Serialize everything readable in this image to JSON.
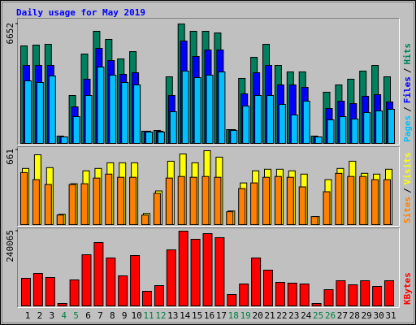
{
  "chart_data": {
    "type": "bar",
    "title": "Daily usage for May 2019",
    "legend_separator": "/",
    "categories": [
      "1",
      "2",
      "3",
      "4",
      "5",
      "6",
      "7",
      "8",
      "9",
      "10",
      "11",
      "12",
      "13",
      "14",
      "15",
      "16",
      "17",
      "18",
      "19",
      "20",
      "21",
      "22",
      "23",
      "24",
      "25",
      "26",
      "27",
      "28",
      "29",
      "30",
      "31"
    ],
    "category_colors": [
      "#000000",
      "#000000",
      "#000000",
      "#008040",
      "#008040",
      "#000000",
      "#000000",
      "#000000",
      "#000000",
      "#000000",
      "#008040",
      "#008040",
      "#000000",
      "#000000",
      "#000000",
      "#000000",
      "#000000",
      "#008040",
      "#008040",
      "#000000",
      "#000000",
      "#000000",
      "#000000",
      "#000000",
      "#008040",
      "#008040",
      "#000000",
      "#000000",
      "#000000",
      "#000000",
      "#000000"
    ],
    "panels": [
      {
        "ylim": [
          0,
          6652
        ],
        "yticks": [
          6652
        ],
        "series": [
          {
            "name": "Hits",
            "color": "#00805c",
            "values": [
              5430,
              5475,
              5520,
              407,
              2670,
              4977,
              6245,
              5792,
              4706,
              5113,
              679,
              724,
              3710,
              6652,
              6245,
              6245,
              6154,
              769,
              3620,
              4796,
              5520,
              4344,
              3982,
              3982,
              407,
              2851,
              3258,
              3575,
              4027,
              4344,
              3710
            ]
          },
          {
            "name": "Files",
            "color": "#0000ff",
            "values": [
              4344,
              4344,
              4344,
              362,
              2036,
              3575,
              5294,
              4616,
              3846,
              3937,
              679,
              679,
              2670,
              5701,
              4842,
              5204,
              5204,
              769,
              2760,
              3937,
              4344,
              3258,
              3258,
              3122,
              362,
              1946,
              2353,
              2217,
              2625,
              2715,
              2308
            ]
          },
          {
            "name": "Pages",
            "color": "#00c0ff",
            "values": [
              3484,
              3394,
              3756,
              362,
              1493,
              2670,
              4254,
              3801,
              3394,
              3258,
              634,
              634,
              1765,
              4027,
              3665,
              3801,
              3982,
              724,
              2082,
              2670,
              2670,
              2172,
              1584,
              2353,
              362,
              1312,
              1493,
              1358,
              1720,
              1810,
              1900
            ]
          }
        ]
      },
      {
        "ylim": [
          0,
          661
        ],
        "yticks": [
          661
        ],
        "series": [
          {
            "name": "Visits",
            "color": "#ffff00",
            "values": [
              497,
              618,
              504,
              92,
              362,
              476,
              497,
              547,
              547,
              547,
              99,
              298,
              561,
              625,
              547,
              654,
              597,
              121,
              369,
              476,
              490,
              490,
              476,
              447,
              71,
              398,
              497,
              561,
              454,
              447,
              490
            ]
          },
          {
            "name": "Sites",
            "color": "#ff8000",
            "values": [
              461,
              398,
              355,
              85,
              355,
              362,
              412,
              447,
              419,
              419,
              85,
              277,
              412,
              426,
              419,
              426,
              419,
              114,
              319,
              369,
              419,
              426,
              419,
              334,
              71,
              291,
              454,
              426,
              426,
              398,
              398
            ]
          }
        ]
      },
      {
        "ylim": [
          0,
          240065
        ],
        "yticks": [
          240065
        ],
        "series": [
          {
            "name": "KBytes",
            "color": "#ff0000",
            "values": [
              88710,
              104370,
              91320,
              7830,
              83490,
              164370,
              203500,
              153930,
              96530,
              161760,
              46960,
              65220,
              180020,
              240065,
              213940,
              232200,
              219150,
              36530,
              70440,
              153930,
              114800,
              75660,
              73050,
              70440,
              7830,
              52180,
              80880,
              67830,
              80880,
              62620,
              80880
            ]
          }
        ]
      }
    ]
  }
}
